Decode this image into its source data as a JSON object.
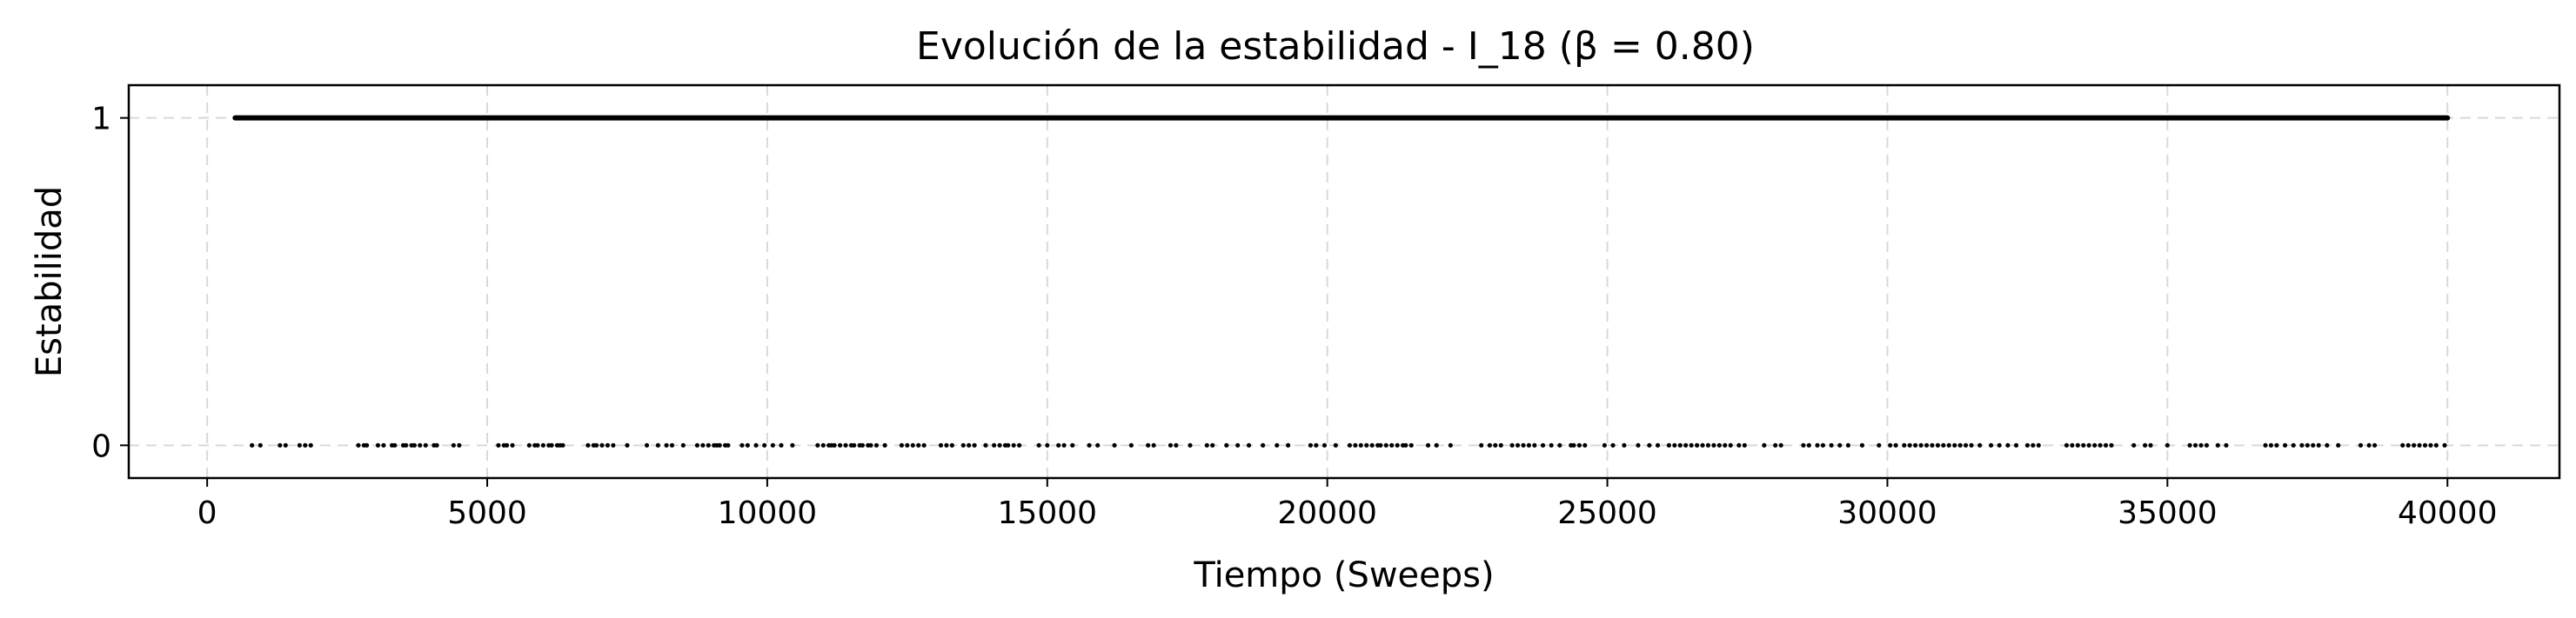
{
  "chart_data": {
    "type": "scatter",
    "title": "Evolución de la estabilidad - I_18 (β = 0.80)",
    "xlabel": "Tiempo (Sweeps)",
    "ylabel": "Estabilidad",
    "xlim": [
      -1400,
      42000
    ],
    "ylim": [
      -0.1,
      1.1
    ],
    "xticks": [
      0,
      5000,
      10000,
      15000,
      20000,
      25000,
      30000,
      35000,
      40000
    ],
    "yticks": [
      0,
      1
    ],
    "grid": true,
    "marker_color": "#000000",
    "series": [
      {
        "level": 1,
        "x_range": [
          500,
          40000
        ],
        "continuous": true
      },
      {
        "level": 0,
        "x": [
          800,
          950,
          1300,
          1400,
          1650,
          1750,
          1850,
          2700,
          2800,
          2850,
          3050,
          3150,
          3300,
          3350,
          3500,
          3550,
          3650,
          3700,
          3800,
          3900,
          4050,
          4100,
          4400,
          4500,
          5200,
          5300,
          5350,
          5450,
          5750,
          5850,
          5900,
          6000,
          6100,
          6150,
          6250,
          6300,
          6350,
          6800,
          6900,
          6950,
          7050,
          7150,
          7250,
          7500,
          7850,
          8050,
          8200,
          8300,
          8500,
          8750,
          8850,
          8950,
          9050,
          9100,
          9150,
          9250,
          9300,
          9550,
          9650,
          9800,
          9950,
          10100,
          10250,
          10450,
          10900,
          11000,
          11100,
          11150,
          11200,
          11300,
          11400,
          11500,
          11550,
          11650,
          11700,
          11800,
          11850,
          11950,
          12100,
          12400,
          12500,
          12600,
          12700,
          12800,
          13100,
          13200,
          13300,
          13500,
          13600,
          13700,
          13900,
          14050,
          14150,
          14250,
          14300,
          14400,
          14500,
          14850,
          15000,
          15200,
          15300,
          15450,
          15750,
          15900,
          16200,
          16500,
          16800,
          16900,
          17200,
          17300,
          17550,
          17850,
          17950,
          18200,
          18400,
          18600,
          18850,
          19100,
          19300,
          19700,
          19800,
          19950,
          20150,
          20400,
          20500,
          20600,
          20700,
          20800,
          20900,
          20950,
          21050,
          21150,
          21250,
          21350,
          21400,
          21500,
          21800,
          21950,
          22200,
          22750,
          22900,
          23000,
          23100,
          23300,
          23400,
          23500,
          23600,
          23700,
          23850,
          24000,
          24150,
          24350,
          24400,
          24500,
          24600,
          24950,
          25100,
          25300,
          25550,
          25750,
          25900,
          26100,
          26200,
          26300,
          26400,
          26500,
          26600,
          26700,
          26800,
          26900,
          27000,
          27100,
          27200,
          27350,
          27450,
          27800,
          28000,
          28100,
          28500,
          28600,
          28750,
          28850,
          29000,
          29150,
          29300,
          29550,
          29850,
          30050,
          30150,
          30300,
          30400,
          30500,
          30600,
          30700,
          30800,
          30900,
          31000,
          31100,
          31200,
          31300,
          31400,
          31500,
          31650,
          31850,
          32000,
          32150,
          32300,
          32500,
          32600,
          32700,
          33200,
          33300,
          33400,
          33500,
          33600,
          33700,
          33800,
          33900,
          34000,
          34400,
          34600,
          34700,
          35000,
          35400,
          35500,
          35600,
          35700,
          35900,
          36050,
          36750,
          36850,
          36950,
          37100,
          37250,
          37400,
          37500,
          37600,
          37700,
          37850,
          38050,
          38450,
          38600,
          38700,
          39200,
          39300,
          39400,
          39500,
          39600,
          39700,
          39800,
          39950
        ]
      }
    ]
  }
}
